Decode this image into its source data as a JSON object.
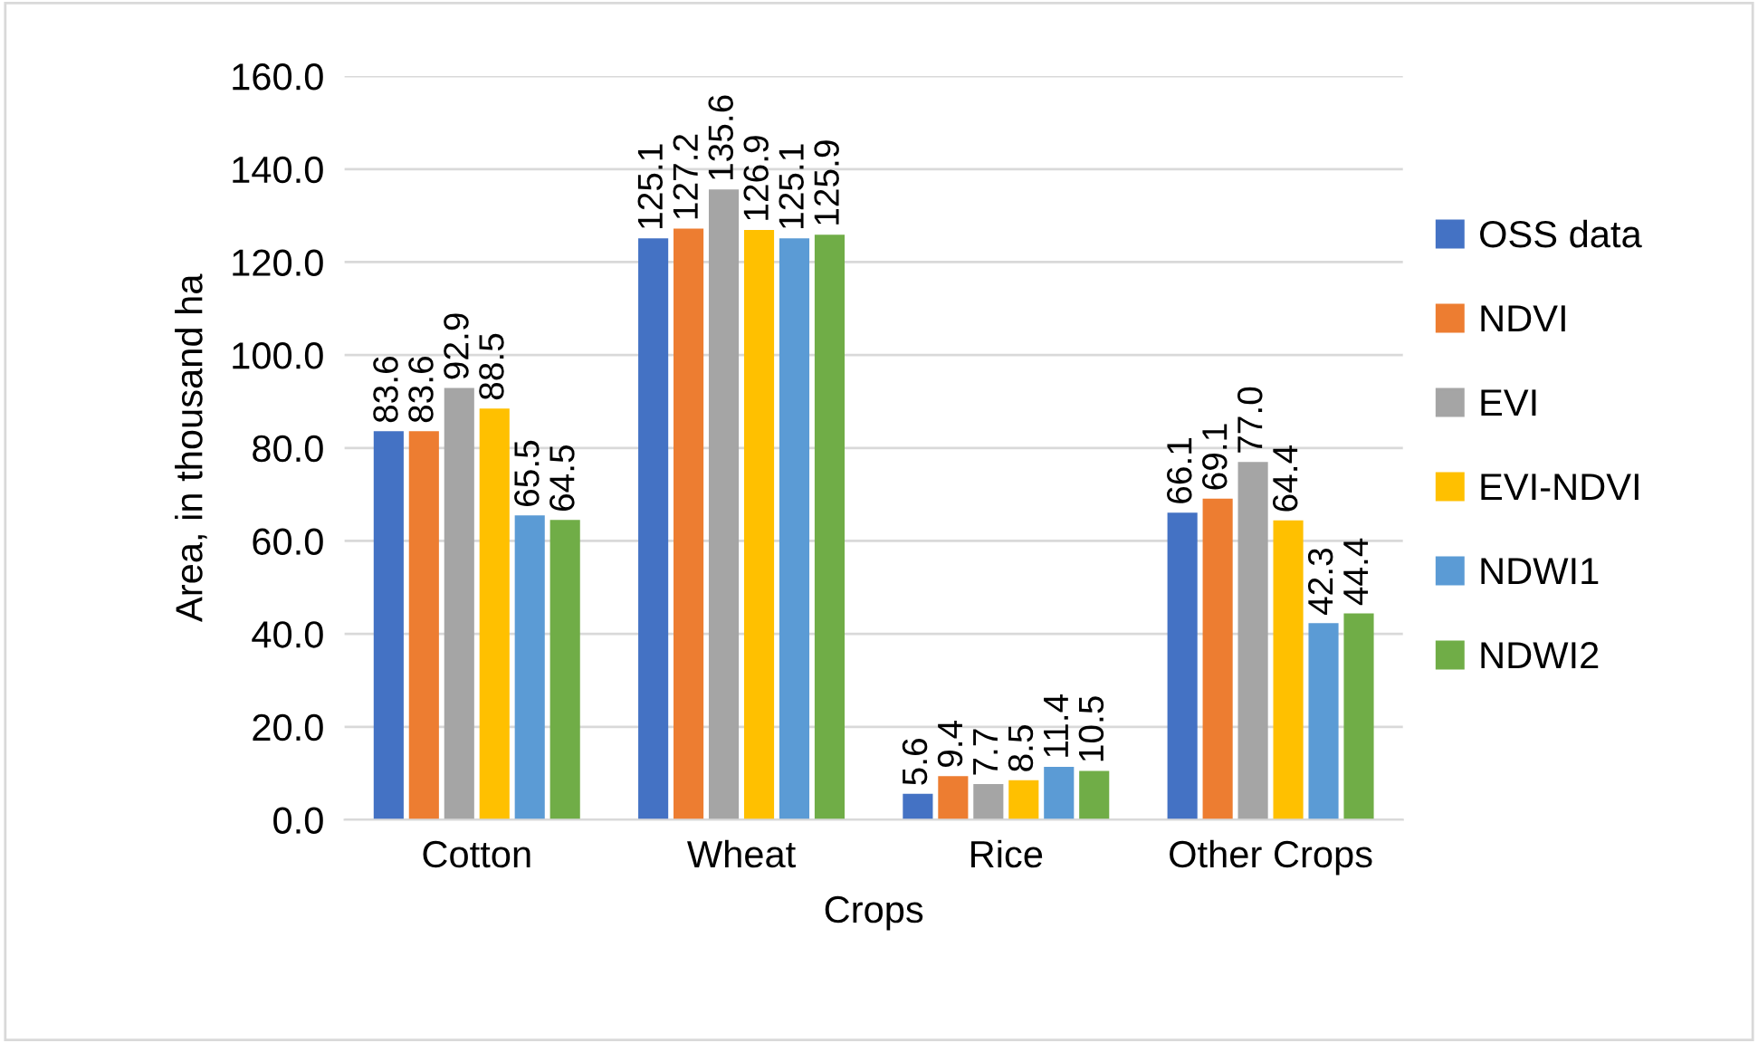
{
  "chart_data": {
    "type": "bar",
    "xlabel": "Crops",
    "ylabel": "Area, in thousand ha",
    "categories": [
      "Cotton",
      "Wheat",
      "Rice",
      "Other Crops"
    ],
    "series": [
      {
        "name": "OSS data",
        "color": "#4472c4",
        "values": [
          83.6,
          125.1,
          5.6,
          66.1
        ],
        "value_labels": [
          "83.6",
          "125.1",
          "5.6",
          "66.1"
        ]
      },
      {
        "name": "NDVI",
        "color": "#ed7d31",
        "values": [
          83.6,
          127.2,
          9.4,
          69.1
        ],
        "value_labels": [
          "83.6",
          "127.2",
          "9.4",
          "69.1"
        ]
      },
      {
        "name": "EVI",
        "color": "#a5a5a5",
        "values": [
          92.9,
          135.6,
          7.7,
          77.0
        ],
        "value_labels": [
          "92.9",
          "135.6",
          "7.7",
          "77.0"
        ]
      },
      {
        "name": "EVI-NDVI",
        "color": "#ffc000",
        "values": [
          88.5,
          126.9,
          8.5,
          64.4
        ],
        "value_labels": [
          "88.5",
          "126.9",
          "8.5",
          "64.4"
        ]
      },
      {
        "name": "NDWI1",
        "color": "#5b9bd5",
        "values": [
          65.5,
          125.1,
          11.4,
          42.3
        ],
        "value_labels": [
          "65.5",
          "125.1",
          "11.4",
          "42.3"
        ]
      },
      {
        "name": "NDWI2",
        "color": "#70ad47",
        "values": [
          64.5,
          125.9,
          10.5,
          44.4
        ],
        "value_labels": [
          "64.5",
          "125.9",
          "10.5",
          "44.4"
        ]
      }
    ],
    "ylim": [
      0,
      160
    ],
    "yticks": [
      {
        "value": 0,
        "label": "0.0"
      },
      {
        "value": 20,
        "label": "20.0"
      },
      {
        "value": 40,
        "label": "40.0"
      },
      {
        "value": 60,
        "label": "60.0"
      },
      {
        "value": 80,
        "label": "80.0"
      },
      {
        "value": 100,
        "label": "100.0"
      },
      {
        "value": 120,
        "label": "120.0"
      },
      {
        "value": 140,
        "label": "140.0"
      },
      {
        "value": 160,
        "label": "160.0"
      }
    ],
    "grid": "y",
    "legend": "right"
  }
}
